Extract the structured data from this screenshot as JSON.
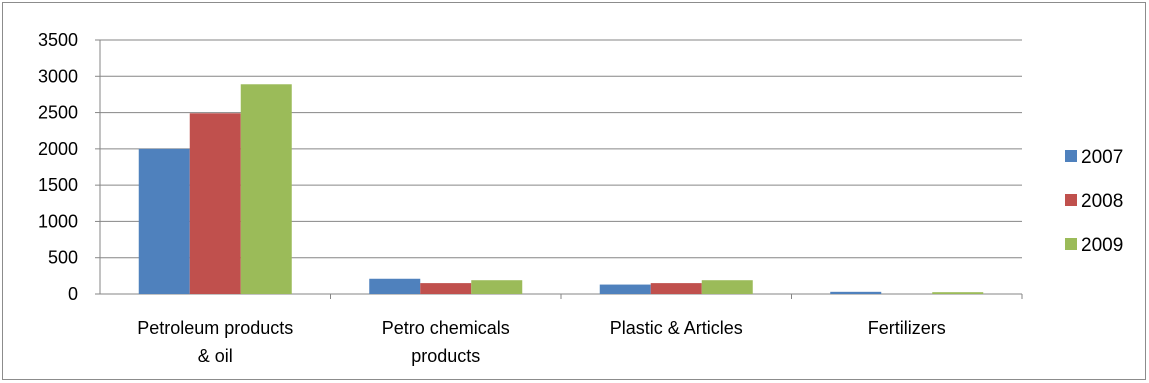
{
  "chart_data": {
    "type": "bar",
    "title": "",
    "xlabel": "",
    "ylabel": "",
    "categories": [
      [
        "Petroleum products",
        "& oil"
      ],
      [
        "Petro chemicals",
        "products"
      ],
      [
        "Plastic & Articles"
      ],
      [
        "Fertilizers"
      ]
    ],
    "series": [
      {
        "name": "2007",
        "color": "#4f81bd",
        "values": [
          2000,
          210,
          130,
          30
        ]
      },
      {
        "name": "2008",
        "color": "#c0504d",
        "values": [
          2490,
          150,
          150,
          0
        ]
      },
      {
        "name": "2009",
        "color": "#9bbb59",
        "values": [
          2890,
          190,
          190,
          25
        ]
      }
    ],
    "ylim": [
      0,
      3500
    ],
    "yticks": [
      0,
      500,
      1000,
      1500,
      2000,
      2500,
      3000,
      3500
    ],
    "grid": true,
    "legend": "right"
  }
}
